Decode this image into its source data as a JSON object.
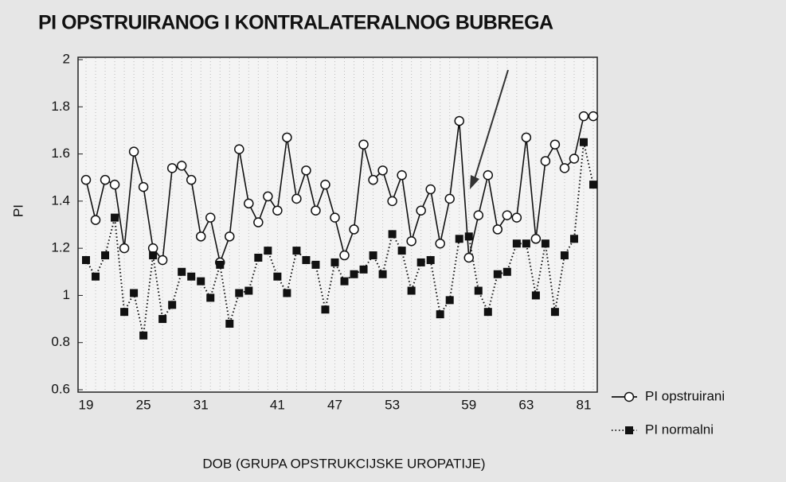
{
  "chart_data": {
    "type": "line",
    "title": "PI OPSTRUIRANOG I KONTRALATERALNOG BUBREGA",
    "x_label": "DOB (GRUPA OPSTRUKCIJSKE UROPATIJE)",
    "y_label": "PI",
    "categories": [
      "19",
      null,
      null,
      null,
      null,
      null,
      "25",
      null,
      null,
      null,
      null,
      null,
      "31",
      null,
      null,
      null,
      null,
      null,
      null,
      null,
      "41",
      null,
      null,
      null,
      null,
      null,
      "47",
      null,
      null,
      null,
      null,
      null,
      "53",
      null,
      null,
      null,
      null,
      null,
      null,
      null,
      "59",
      null,
      null,
      null,
      null,
      null,
      "63",
      null,
      null,
      null,
      null,
      null,
      "81",
      null
    ],
    "series": [
      {
        "name": "PI opstruirani",
        "color": "#111111",
        "marker": "circle",
        "dash": "solid",
        "values": [
          1.49,
          1.32,
          1.49,
          1.47,
          1.2,
          1.61,
          1.46,
          1.2,
          1.15,
          1.54,
          1.55,
          1.49,
          1.25,
          1.33,
          1.14,
          1.25,
          1.62,
          1.39,
          1.31,
          1.42,
          1.36,
          1.67,
          1.41,
          1.53,
          1.36,
          1.47,
          1.33,
          1.17,
          1.28,
          1.64,
          1.49,
          1.53,
          1.4,
          1.51,
          1.23,
          1.36,
          1.45,
          1.22,
          1.41,
          1.74,
          1.16,
          1.34,
          1.51,
          1.28,
          1.34,
          1.33,
          1.67,
          1.24,
          1.57,
          1.64,
          1.54,
          1.58,
          1.76,
          1.76
        ]
      },
      {
        "name": "PI normalni",
        "color": "#111111",
        "marker": "square",
        "dash": "dotted",
        "values": [
          1.15,
          1.08,
          1.17,
          1.33,
          0.93,
          1.01,
          0.83,
          1.17,
          0.9,
          0.96,
          1.1,
          1.08,
          1.06,
          0.99,
          1.13,
          0.88,
          1.01,
          1.02,
          1.16,
          1.19,
          1.08,
          1.01,
          1.19,
          1.15,
          1.13,
          0.94,
          1.14,
          1.06,
          1.09,
          1.11,
          1.17,
          1.09,
          1.26,
          1.19,
          1.02,
          1.14,
          1.15,
          0.92,
          0.98,
          1.24,
          1.25,
          1.02,
          0.93,
          1.09,
          1.1,
          1.22,
          1.22,
          1.0,
          1.22,
          0.93,
          1.17,
          1.24,
          1.65,
          1.47
        ]
      }
    ],
    "ylim": [
      0.6,
      2
    ],
    "yticks": [
      0.6,
      0.8,
      1,
      1.2,
      1.4,
      1.6,
      1.8,
      2
    ],
    "grid": true,
    "legend": "right"
  }
}
